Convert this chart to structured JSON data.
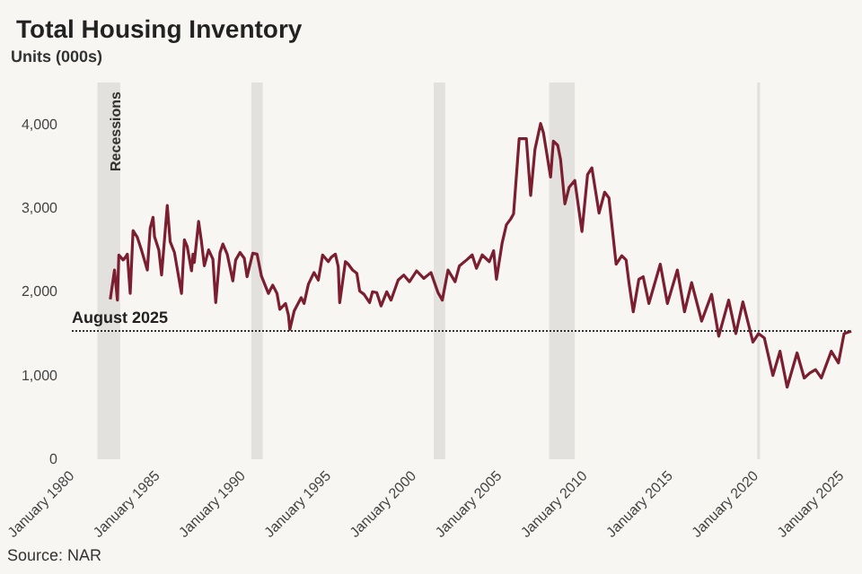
{
  "chart_data": {
    "type": "line",
    "title": "Total Housing Inventory",
    "ylabel": "Units (000s)",
    "annotations": [
      "Source: NAR"
    ],
    "x": [
      "1982-04",
      "1982-07",
      "1982-09",
      "1982-10",
      "1983-01",
      "1983-03",
      "1983-04",
      "1983-06",
      "1983-08",
      "1983-11",
      "1984-02",
      "1984-06",
      "1984-08",
      "1984-10",
      "1984-11",
      "1985-02",
      "1985-04",
      "1985-08",
      "1985-10",
      "1986-01",
      "1986-06",
      "1986-08",
      "1986-10",
      "1987-01",
      "1987-02",
      "1987-03",
      "1987-06",
      "1987-08",
      "1987-10",
      "1988-01",
      "1988-04",
      "1988-06",
      "1988-09",
      "1988-11",
      "1989-02",
      "1989-06",
      "1989-08",
      "1989-11",
      "1990-02",
      "1990-04",
      "1990-08",
      "1990-11",
      "1991-02",
      "1991-07",
      "1991-10",
      "1992-01",
      "1992-03",
      "1992-07",
      "1992-09",
      "1992-10",
      "1993-01",
      "1993-06",
      "1993-08",
      "1993-11",
      "1994-03",
      "1994-06",
      "1994-09",
      "1995-01",
      "1995-03",
      "1995-06",
      "1995-08",
      "1995-09",
      "1996-01",
      "1996-03",
      "1996-06",
      "1996-09",
      "1996-11",
      "1997-02",
      "1997-06",
      "1997-08",
      "1997-11",
      "1998-02",
      "1998-06",
      "1998-09",
      "1999-02",
      "1999-06",
      "1999-10",
      "2000-03",
      "2000-08",
      "2001-01",
      "2001-06",
      "2001-09",
      "2002-01",
      "2002-06",
      "2002-09",
      "2003-02",
      "2003-06",
      "2003-09",
      "2004-01",
      "2004-06",
      "2004-09",
      "2004-11",
      "2005-03",
      "2005-06",
      "2005-09",
      "2005-11",
      "2006-03",
      "2006-08",
      "2006-11",
      "2007-02",
      "2007-06",
      "2007-08",
      "2008-01",
      "2008-03",
      "2008-06",
      "2008-08",
      "2008-11",
      "2009-02",
      "2009-06",
      "2009-11",
      "2010-03",
      "2010-06",
      "2010-11",
      "2011-03",
      "2011-06",
      "2011-11",
      "2012-03",
      "2012-06",
      "2012-08",
      "2012-11",
      "2013-03",
      "2013-06",
      "2013-10",
      "2014-06",
      "2014-11",
      "2015-06",
      "2015-11",
      "2016-04",
      "2016-11",
      "2017-06",
      "2017-11",
      "2018-06",
      "2018-11",
      "2019-04",
      "2019-11",
      "2020-03",
      "2020-07",
      "2021-01",
      "2021-06",
      "2021-11",
      "2022-06",
      "2022-11",
      "2023-03",
      "2023-07",
      "2023-11",
      "2024-06",
      "2024-11",
      "2025-03",
      "2025-08"
    ],
    "values": [
      1910,
      2260,
      1900,
      2440,
      2380,
      2420,
      2450,
      1980,
      2730,
      2650,
      2490,
      2260,
      2760,
      2890,
      2660,
      2500,
      2200,
      3030,
      2600,
      2470,
      1980,
      2620,
      2540,
      2250,
      2450,
      2350,
      2840,
      2600,
      2310,
      2500,
      2390,
      1870,
      2470,
      2570,
      2450,
      2130,
      2380,
      2470,
      2400,
      2180,
      2460,
      2450,
      2190,
      1980,
      2080,
      1980,
      1790,
      1860,
      1720,
      1550,
      1770,
      1930,
      1860,
      2090,
      2230,
      2140,
      2440,
      2360,
      2410,
      2450,
      2300,
      1870,
      2360,
      2330,
      2260,
      2220,
      2010,
      1970,
      1870,
      2000,
      1990,
      1830,
      2000,
      1900,
      2140,
      2200,
      2120,
      2250,
      2160,
      2230,
      1990,
      1900,
      2260,
      2120,
      2310,
      2380,
      2440,
      2280,
      2440,
      2360,
      2490,
      2150,
      2580,
      2800,
      2870,
      2930,
      3830,
      3830,
      3150,
      3700,
      4010,
      3900,
      3370,
      3800,
      3750,
      3580,
      3050,
      3250,
      3330,
      2720,
      3400,
      3480,
      2940,
      3190,
      3120,
      2330,
      2430,
      2380,
      2110,
      1760,
      2150,
      2180,
      1860,
      2330,
      1860,
      2260,
      1760,
      2110,
      1650,
      1970,
      1470,
      1900,
      1500,
      1880,
      1400,
      1500,
      1450,
      1000,
      1290,
      860,
      1270,
      970,
      1030,
      1070,
      970,
      1290,
      1150,
      1500,
      1530
    ],
    "color": "#7b1e30",
    "line_style": "solid",
    "marker": "none",
    "xlim": [
      "1980-01",
      "2025-08"
    ],
    "xticks": [
      {
        "value": "1980-01",
        "label": "January 1980"
      },
      {
        "value": "1985-01",
        "label": "January 1985"
      },
      {
        "value": "1990-01",
        "label": "January 1990"
      },
      {
        "value": "1995-01",
        "label": "January 1995"
      },
      {
        "value": "2000-01",
        "label": "January 2000"
      },
      {
        "value": "2005-01",
        "label": "January 2005"
      },
      {
        "value": "2010-01",
        "label": "January 2010"
      },
      {
        "value": "2015-01",
        "label": "January 2015"
      },
      {
        "value": "2020-01",
        "label": "January 2020"
      },
      {
        "value": "2025-01",
        "label": "January 2025"
      }
    ],
    "ylim": [
      0,
      4500
    ],
    "yticks": [
      0,
      {
        "value": 1000,
        "label": "1,000"
      },
      {
        "value": 2000,
        "label": "2,000"
      },
      {
        "value": 3000,
        "label": "3,000"
      },
      {
        "value": 4000,
        "label": "4,000"
      }
    ],
    "grid": false,
    "ref_lines": [
      {
        "axis": "y",
        "value": 1530,
        "label": "August 2025",
        "color": "#333333",
        "line_style": "dotted"
      }
    ],
    "bands": [
      {
        "axis": "x",
        "from": "1981-07",
        "to": "1982-11",
        "label": "Recessions",
        "color": "#e2e1dd"
      },
      {
        "axis": "x",
        "from": "1990-07",
        "to": "1991-03",
        "color": "#e2e1dd"
      },
      {
        "axis": "x",
        "from": "2001-03",
        "to": "2001-11",
        "color": "#e2e1dd"
      },
      {
        "axis": "x",
        "from": "2007-12",
        "to": "2009-06",
        "color": "#e2e1dd"
      },
      {
        "axis": "x",
        "from": "2020-02",
        "to": "2020-04",
        "color": "#e2e1dd"
      }
    ]
  }
}
